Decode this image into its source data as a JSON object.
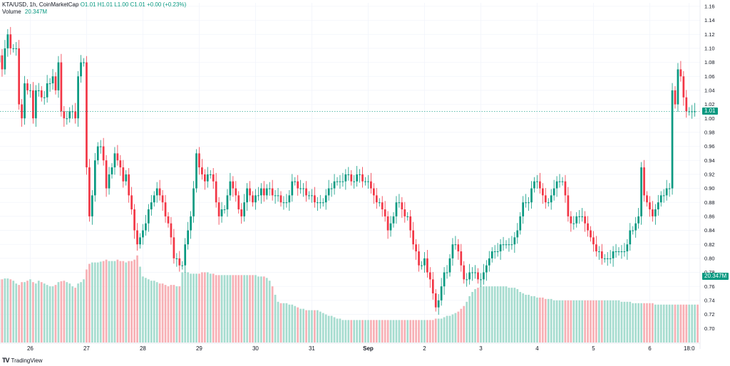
{
  "legend": {
    "symbol": "KTA/USD, 1h, CoinMarketCap",
    "ohlc": "O1.01 H1.01 L1.00 C1.01 +0.00 (+0.23%)",
    "volume_label": "Volume",
    "volume_value": "20.347M"
  },
  "brand": {
    "logo_text": "TV",
    "name": "TradingView"
  },
  "price_tag": {
    "text": "1.01",
    "color": "#089981"
  },
  "volume_tag": {
    "text": "20.347M",
    "color": "#089981"
  },
  "colors": {
    "up": "#089981",
    "down": "#f23645",
    "vol_up": "#a6dccf",
    "vol_down": "#f7b0b5",
    "grid": "#f0f3fa"
  },
  "chart_data": {
    "type": "candlestick",
    "y_ticks": [
      "1.16",
      "1.14",
      "1.12",
      "1.10",
      "1.08",
      "1.06",
      "1.04",
      "1.02",
      "1.00",
      "0.98",
      "0.96",
      "0.94",
      "0.92",
      "0.90",
      "0.88",
      "0.86",
      "0.84",
      "0.82",
      "0.80",
      "0.78",
      "0.76",
      "0.74",
      "0.72",
      "0.70"
    ],
    "ylim": [
      0.69,
      1.165
    ],
    "x_ticks": [
      {
        "label": "26",
        "index": 11
      },
      {
        "label": "27",
        "index": 31
      },
      {
        "label": "28",
        "index": 51
      },
      {
        "label": "29",
        "index": 71
      },
      {
        "label": "30",
        "index": 91
      },
      {
        "label": "31",
        "index": 111
      },
      {
        "label": "Sep",
        "index": 131
      },
      {
        "label": "2",
        "index": 151
      },
      {
        "label": "3",
        "index": 171
      },
      {
        "label": "4",
        "index": 191
      },
      {
        "label": "5",
        "index": 211
      },
      {
        "label": "6",
        "index": 231
      },
      {
        "label": "18:0",
        "index": 245
      }
    ],
    "closes": [
      1.09,
      1.07,
      1.1,
      1.12,
      1.1,
      1.1,
      1.1,
      1.02,
      1.0,
      1.05,
      1.04,
      1.04,
      1.0,
      1.04,
      1.04,
      1.03,
      1.03,
      1.05,
      1.05,
      1.06,
      1.04,
      1.08,
      1.01,
      1.0,
      1.0,
      1.01,
      1.01,
      1.0,
      1.06,
      1.08,
      1.08,
      0.93,
      0.86,
      0.89,
      0.94,
      0.96,
      0.96,
      0.94,
      0.9,
      0.92,
      0.93,
      0.95,
      0.94,
      0.93,
      0.91,
      0.92,
      0.89,
      0.87,
      0.84,
      0.82,
      0.83,
      0.84,
      0.85,
      0.87,
      0.88,
      0.89,
      0.9,
      0.89,
      0.88,
      0.86,
      0.85,
      0.83,
      0.8,
      0.8,
      0.79,
      0.79,
      0.82,
      0.84,
      0.86,
      0.9,
      0.95,
      0.93,
      0.92,
      0.91,
      0.92,
      0.92,
      0.91,
      0.88,
      0.86,
      0.87,
      0.87,
      0.89,
      0.91,
      0.9,
      0.89,
      0.87,
      0.86,
      0.88,
      0.9,
      0.89,
      0.88,
      0.89,
      0.89,
      0.9,
      0.89,
      0.9,
      0.9,
      0.89,
      0.89,
      0.89,
      0.88,
      0.88,
      0.88,
      0.89,
      0.91,
      0.91,
      0.9,
      0.9,
      0.9,
      0.89,
      0.89,
      0.89,
      0.88,
      0.88,
      0.88,
      0.88,
      0.89,
      0.9,
      0.9,
      0.91,
      0.91,
      0.91,
      0.91,
      0.92,
      0.92,
      0.91,
      0.91,
      0.92,
      0.92,
      0.91,
      0.91,
      0.91,
      0.9,
      0.89,
      0.88,
      0.88,
      0.87,
      0.86,
      0.84,
      0.85,
      0.86,
      0.88,
      0.88,
      0.87,
      0.86,
      0.86,
      0.84,
      0.82,
      0.81,
      0.79,
      0.79,
      0.8,
      0.78,
      0.77,
      0.75,
      0.73,
      0.74,
      0.76,
      0.78,
      0.78,
      0.8,
      0.82,
      0.82,
      0.81,
      0.79,
      0.77,
      0.77,
      0.78,
      0.78,
      0.78,
      0.77,
      0.77,
      0.78,
      0.79,
      0.8,
      0.81,
      0.81,
      0.81,
      0.82,
      0.82,
      0.82,
      0.82,
      0.82,
      0.83,
      0.84,
      0.86,
      0.88,
      0.88,
      0.88,
      0.9,
      0.91,
      0.91,
      0.9,
      0.89,
      0.88,
      0.88,
      0.89,
      0.9,
      0.91,
      0.91,
      0.91,
      0.89,
      0.86,
      0.85,
      0.85,
      0.86,
      0.86,
      0.86,
      0.85,
      0.84,
      0.83,
      0.82,
      0.81,
      0.81,
      0.8,
      0.8,
      0.8,
      0.8,
      0.81,
      0.81,
      0.81,
      0.81,
      0.81,
      0.82,
      0.84,
      0.84,
      0.85,
      0.86,
      0.93,
      0.89,
      0.88,
      0.87,
      0.86,
      0.87,
      0.88,
      0.89,
      0.89,
      0.9,
      0.9,
      1.04,
      1.02,
      1.07,
      1.06,
      1.03,
      1.01,
      1.01,
      1.01,
      1.01
    ],
    "volumes": [
      22.5,
      22.5,
      22.8,
      22.8,
      22.5,
      22.0,
      21.0,
      20.5,
      21.5,
      21.5,
      22.0,
      22.5,
      21.5,
      21.0,
      22.0,
      21.5,
      21.0,
      20.5,
      20.0,
      20.0,
      20.5,
      21.5,
      21.8,
      22.0,
      21.5,
      21.0,
      20.0,
      19.5,
      21.0,
      21.5,
      22.5,
      26.0,
      28.0,
      28.5,
      28.5,
      28.5,
      28.8,
      29.0,
      29.5,
      29.0,
      29.0,
      29.0,
      29.5,
      29.0,
      29.0,
      28.5,
      29.0,
      29.0,
      29.5,
      31.0,
      27.0,
      23.5,
      23.0,
      22.5,
      22.0,
      22.0,
      21.5,
      21.0,
      21.0,
      20.5,
      20.0,
      20.5,
      20.5,
      20.0,
      20.0,
      25.0,
      25.0,
      25.0,
      24.5,
      24.5,
      24.5,
      24.5,
      25.0,
      25.0,
      25.0,
      24.5,
      24.5,
      24.0,
      24.0,
      24.0,
      24.0,
      24.0,
      24.0,
      24.0,
      24.0,
      24.0,
      24.0,
      24.0,
      24.0,
      24.0,
      24.0,
      24.0,
      23.5,
      23.5,
      23.5,
      23.0,
      22.0,
      20.0,
      17.0,
      14.5,
      14.0,
      14.0,
      14.0,
      13.5,
      13.5,
      13.0,
      12.5,
      12.0,
      12.0,
      11.5,
      11.5,
      11.5,
      11.5,
      11.5,
      11.0,
      10.5,
      10.0,
      9.5,
      9.5,
      9.0,
      8.5,
      8.5,
      8.0,
      8.0,
      8.0,
      8.0,
      8.0,
      8.0,
      8.0,
      8.0,
      8.0,
      8.0,
      8.0,
      8.0,
      8.0,
      8.0,
      8.0,
      8.0,
      8.0,
      8.0,
      8.0,
      8.0,
      8.0,
      8.0,
      8.0,
      8.0,
      8.0,
      8.0,
      8.0,
      8.0,
      8.0,
      8.0,
      8.0,
      8.0,
      8.0,
      8.5,
      8.5,
      8.5,
      9.0,
      9.5,
      9.5,
      10.0,
      10.5,
      11.0,
      12.0,
      13.0,
      14.5,
      16.5,
      18.0,
      19.0,
      19.5,
      20.0,
      20.0,
      20.0,
      20.0,
      20.0,
      20.0,
      20.0,
      20.0,
      20.0,
      20.0,
      19.5,
      19.5,
      19.5,
      19.0,
      18.0,
      17.5,
      17.0,
      17.0,
      16.5,
      16.5,
      16.0,
      16.0,
      16.0,
      15.5,
      15.5,
      15.5,
      15.0,
      15.0,
      15.0,
      15.0,
      15.0,
      15.0,
      15.0,
      15.0,
      15.0,
      15.0,
      15.0,
      15.0,
      15.0,
      15.0,
      15.0,
      15.0,
      15.0,
      15.0,
      15.0,
      15.0,
      15.0,
      15.0,
      15.0,
      15.0,
      14.5,
      14.5,
      14.5,
      14.5,
      14.0,
      14.0,
      14.0,
      14.0,
      14.0,
      14.0,
      14.0,
      14.0,
      13.5,
      13.5,
      13.5,
      13.5,
      13.5,
      13.5,
      13.5,
      13.5,
      13.5,
      13.5,
      13.5,
      13.5,
      13.5,
      13.5,
      13.5,
      13.5,
      14.5,
      15.5,
      16.5,
      16.5,
      16.5,
      17.0,
      17.0,
      17.0,
      16.5,
      16.5,
      20.0,
      22.0,
      23.0,
      23.5,
      23.5,
      23.5,
      23.5,
      23.5,
      23.5
    ],
    "volume_max": 36,
    "last_price": 1.01
  }
}
